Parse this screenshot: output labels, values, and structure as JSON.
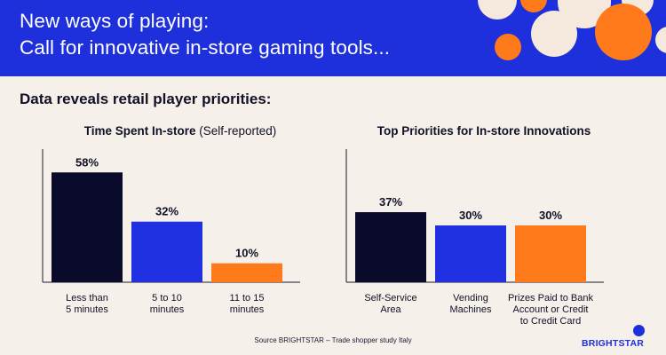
{
  "header": {
    "title_line1": "New ways of playing:",
    "title_line2": "Call for innovative in-store gaming tools..."
  },
  "subheading": "Data reveals retail player priorities:",
  "colors": {
    "header_blue": "#1e2fdc",
    "navy": "#0a0a2a",
    "blue": "#1f31e0",
    "orange": "#ff7a1a",
    "cream": "#f6f0ea",
    "bubble_cream": "#f5e9de"
  },
  "chart_data": [
    {
      "type": "bar",
      "title": "Time Spent In-store",
      "title_suffix": "(Self-reported)",
      "categories": [
        [
          "Less than",
          "5 minutes"
        ],
        [
          "5 to 10",
          "minutes"
        ],
        [
          "11 to 15",
          "minutes"
        ]
      ],
      "values": [
        58,
        32,
        10
      ],
      "value_labels": [
        "58%",
        "32%",
        "10%"
      ],
      "colors": [
        "#0a0a2a",
        "#1f31e0",
        "#ff7a1a"
      ],
      "ylim": [
        0,
        60
      ],
      "grid": false
    },
    {
      "type": "bar",
      "title": "Top Priorities for In-store Innovations",
      "categories": [
        [
          "Self-Service",
          "Area"
        ],
        [
          "Vending",
          "Machines"
        ],
        [
          "Prizes Paid to Bank",
          "Account or Credit",
          "to Credit Card"
        ]
      ],
      "values": [
        37,
        30,
        30
      ],
      "value_labels": [
        "37%",
        "30%",
        "30%"
      ],
      "colors": [
        "#0a0a2a",
        "#1f31e0",
        "#ff7a1a"
      ],
      "ylim": [
        0,
        60
      ],
      "grid": false
    }
  ],
  "source": "Source BRIGHTSTAR – Trade shopper study Italy",
  "logo": {
    "text": "BRIGHTSTAR",
    "icon": "brightstar-mark-icon"
  }
}
